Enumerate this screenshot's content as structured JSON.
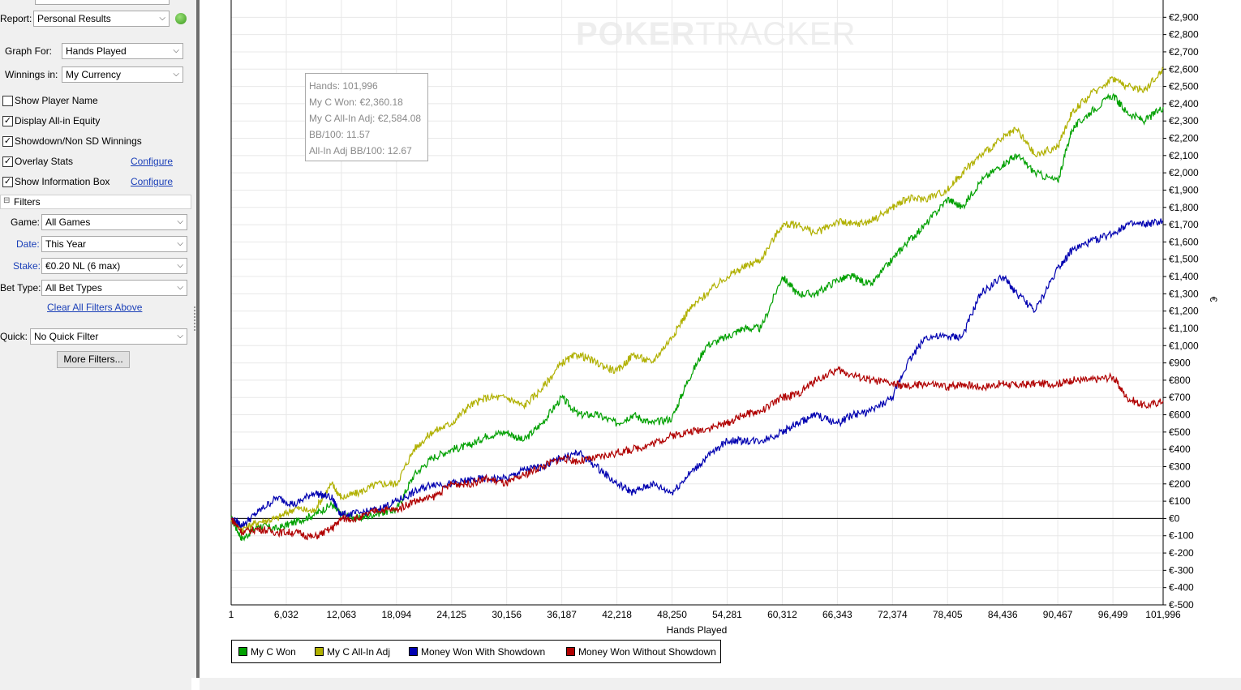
{
  "sidebar": {
    "report_label": "Report:",
    "report_value": "Personal Results",
    "graph_for_label": "Graph For:",
    "graph_for_value": "Hands Played",
    "winnings_in_label": "Winnings in:",
    "winnings_in_value": "My Currency",
    "checkboxes": [
      {
        "label": "Show Player Name",
        "checked": false
      },
      {
        "label": "Display All-in Equity",
        "checked": true
      },
      {
        "label": "Showdown/Non SD Winnings",
        "checked": true
      },
      {
        "label": "Overlay Stats",
        "checked": true
      },
      {
        "label": "Show Information Box",
        "checked": true
      }
    ],
    "configure_label": "Configure",
    "filters_header": "Filters",
    "filters_toggle": "⊟",
    "game_label": "Game:",
    "game_value": "All Games",
    "date_label": "Date:",
    "date_value": "This Year",
    "stake_label": "Stake:",
    "stake_value": "€0.20 NL (6 max)",
    "bet_type_label": "Bet Type:",
    "bet_type_value": "All Bet Types",
    "clear_filters": "Clear All Filters Above",
    "quick_label": "Quick:",
    "quick_value": "No Quick Filter",
    "more_filters": "More Filters...",
    "dropdown_arrow": "⌵"
  },
  "info_box": {
    "hands": "Hands: 101,996",
    "won": "My C Won: €2,360.18",
    "allin_adj": "My C All-In Adj: €2,584.08",
    "bb100": "BB/100: 11.57",
    "allin_bb100": "All-In Adj BB/100: 12.67"
  },
  "watermark": {
    "bold": "POKER",
    "light": "TRACKER"
  },
  "colors": {
    "my_c_won": "#00a000",
    "allin_adj": "#b0b000",
    "showdown": "#0000b0",
    "non_showdown": "#b00000",
    "grid": "#e8e8e8"
  },
  "chart_data": {
    "type": "line",
    "xlabel": "Hands Played",
    "ylabel": "€",
    "xlim": [
      1,
      101996
    ],
    "ylim": [
      -500,
      3000
    ],
    "x_ticks": [
      "1",
      "6,032",
      "12,063",
      "18,094",
      "24,125",
      "30,156",
      "36,187",
      "42,218",
      "48,250",
      "54,281",
      "60,312",
      "66,343",
      "72,374",
      "78,405",
      "84,436",
      "90,467",
      "96,499",
      "101,996"
    ],
    "x_tick_values": [
      1,
      6032,
      12063,
      18094,
      24125,
      30156,
      36187,
      42218,
      48250,
      54281,
      60312,
      66343,
      72374,
      78405,
      84436,
      90467,
      96499,
      101996
    ],
    "y_ticks": [
      "€-500",
      "€-400",
      "€-300",
      "€-200",
      "€-100",
      "€0",
      "€100",
      "€200",
      "€300",
      "€400",
      "€500",
      "€600",
      "€700",
      "€800",
      "€900",
      "€1,000",
      "€1,100",
      "€1,200",
      "€1,300",
      "€1,400",
      "€1,500",
      "€1,600",
      "€1,700",
      "€1,800",
      "€1,900",
      "€2,000",
      "€2,100",
      "€2,200",
      "€2,300",
      "€2,400",
      "€2,500",
      "€2,600",
      "€2,700",
      "€2,800",
      "€2,900"
    ],
    "y_tick_values": [
      -500,
      -400,
      -300,
      -200,
      -100,
      0,
      100,
      200,
      300,
      400,
      500,
      600,
      700,
      800,
      900,
      1000,
      1100,
      1200,
      1300,
      1400,
      1500,
      1600,
      1700,
      1800,
      1900,
      2000,
      2100,
      2200,
      2300,
      2400,
      2500,
      2600,
      2700,
      2800,
      2900
    ],
    "legend": "bottom-left",
    "grid": true,
    "series": [
      {
        "name": "My C Won",
        "color": "#00a000",
        "x": [
          1,
          1200,
          3000,
          5000,
          7000,
          9000,
          11000,
          12063,
          14000,
          16000,
          18094,
          20000,
          22000,
          24125,
          26000,
          28000,
          30156,
          32000,
          34000,
          36187,
          38000,
          40000,
          42218,
          44000,
          46000,
          48250,
          50000,
          52000,
          54281,
          56000,
          58000,
          60312,
          62000,
          64000,
          66343,
          68000,
          70000,
          72374,
          74000,
          76000,
          78405,
          80000,
          82000,
          84436,
          86000,
          88000,
          90467,
          92000,
          94000,
          96499,
          98000,
          100000,
          101996
        ],
        "y": [
          0,
          -120,
          -40,
          -60,
          -20,
          20,
          80,
          20,
          0,
          30,
          50,
          250,
          350,
          400,
          420,
          480,
          500,
          450,
          550,
          700,
          600,
          600,
          550,
          600,
          550,
          580,
          800,
          1000,
          1050,
          1100,
          1100,
          1400,
          1300,
          1300,
          1380,
          1400,
          1350,
          1500,
          1600,
          1700,
          1850,
          1800,
          1950,
          2050,
          2100,
          2000,
          1950,
          2250,
          2350,
          2450,
          2350,
          2300,
          2380
        ]
      },
      {
        "name": "My C All-In Adj",
        "color": "#b0b000",
        "x": [
          1,
          1200,
          3000,
          5000,
          7000,
          9000,
          11000,
          12063,
          14000,
          16000,
          18094,
          20000,
          22000,
          24125,
          26000,
          28000,
          30156,
          32000,
          34000,
          36187,
          38000,
          40000,
          42218,
          44000,
          46000,
          48250,
          50000,
          52000,
          54281,
          56000,
          58000,
          60312,
          62000,
          64000,
          66343,
          68000,
          70000,
          72374,
          74000,
          76000,
          78405,
          80000,
          82000,
          84436,
          86000,
          88000,
          90467,
          92000,
          94000,
          96499,
          98000,
          100000,
          101996
        ],
        "y": [
          0,
          -60,
          -20,
          0,
          60,
          40,
          200,
          120,
          150,
          200,
          200,
          400,
          500,
          550,
          650,
          700,
          700,
          650,
          750,
          900,
          950,
          900,
          850,
          950,
          900,
          1050,
          1200,
          1300,
          1400,
          1450,
          1500,
          1700,
          1700,
          1650,
          1720,
          1700,
          1720,
          1800,
          1850,
          1850,
          1900,
          2000,
          2100,
          2200,
          2250,
          2100,
          2150,
          2350,
          2450,
          2550,
          2500,
          2480,
          2600
        ]
      },
      {
        "name": "Money Won With Showdown",
        "color": "#0000b0",
        "x": [
          1,
          1200,
          3000,
          5000,
          7000,
          9000,
          11000,
          12063,
          14000,
          16000,
          18094,
          20000,
          22000,
          24125,
          26000,
          28000,
          30156,
          32000,
          34000,
          36187,
          38000,
          40000,
          42218,
          44000,
          46000,
          48250,
          50000,
          52000,
          54281,
          56000,
          58000,
          60312,
          62000,
          64000,
          66343,
          68000,
          70000,
          72374,
          74000,
          76000,
          78405,
          80000,
          82000,
          84436,
          86000,
          88000,
          90467,
          92000,
          94000,
          96499,
          98000,
          100000,
          101996
        ],
        "y": [
          0,
          -40,
          40,
          120,
          80,
          150,
          120,
          20,
          30,
          50,
          100,
          150,
          200,
          200,
          220,
          230,
          230,
          280,
          300,
          350,
          380,
          300,
          200,
          150,
          200,
          150,
          250,
          350,
          450,
          450,
          450,
          500,
          550,
          600,
          550,
          600,
          620,
          700,
          900,
          1050,
          1050,
          1050,
          1300,
          1400,
          1300,
          1200,
          1450,
          1550,
          1600,
          1650,
          1700,
          1700,
          1720
        ]
      },
      {
        "name": "Money Won Without Showdown",
        "color": "#b00000",
        "x": [
          1,
          1200,
          3000,
          5000,
          7000,
          9000,
          11000,
          12063,
          14000,
          16000,
          18094,
          20000,
          22000,
          24125,
          26000,
          28000,
          30156,
          32000,
          34000,
          36187,
          38000,
          40000,
          42218,
          44000,
          46000,
          48250,
          50000,
          52000,
          54281,
          56000,
          58000,
          60312,
          62000,
          64000,
          66343,
          68000,
          70000,
          72374,
          74000,
          76000,
          78405,
          80000,
          82000,
          84436,
          86000,
          88000,
          90467,
          92000,
          94000,
          96499,
          98000,
          100000,
          101996
        ],
        "y": [
          0,
          -80,
          -60,
          -80,
          -80,
          -110,
          -60,
          0,
          0,
          50,
          50,
          100,
          120,
          200,
          200,
          230,
          200,
          250,
          300,
          350,
          330,
          350,
          380,
          400,
          430,
          480,
          500,
          520,
          550,
          600,
          620,
          700,
          720,
          800,
          860,
          830,
          800,
          780,
          760,
          780,
          760,
          780,
          760,
          780,
          770,
          780,
          780,
          800,
          800,
          820,
          700,
          650,
          680
        ]
      }
    ]
  }
}
